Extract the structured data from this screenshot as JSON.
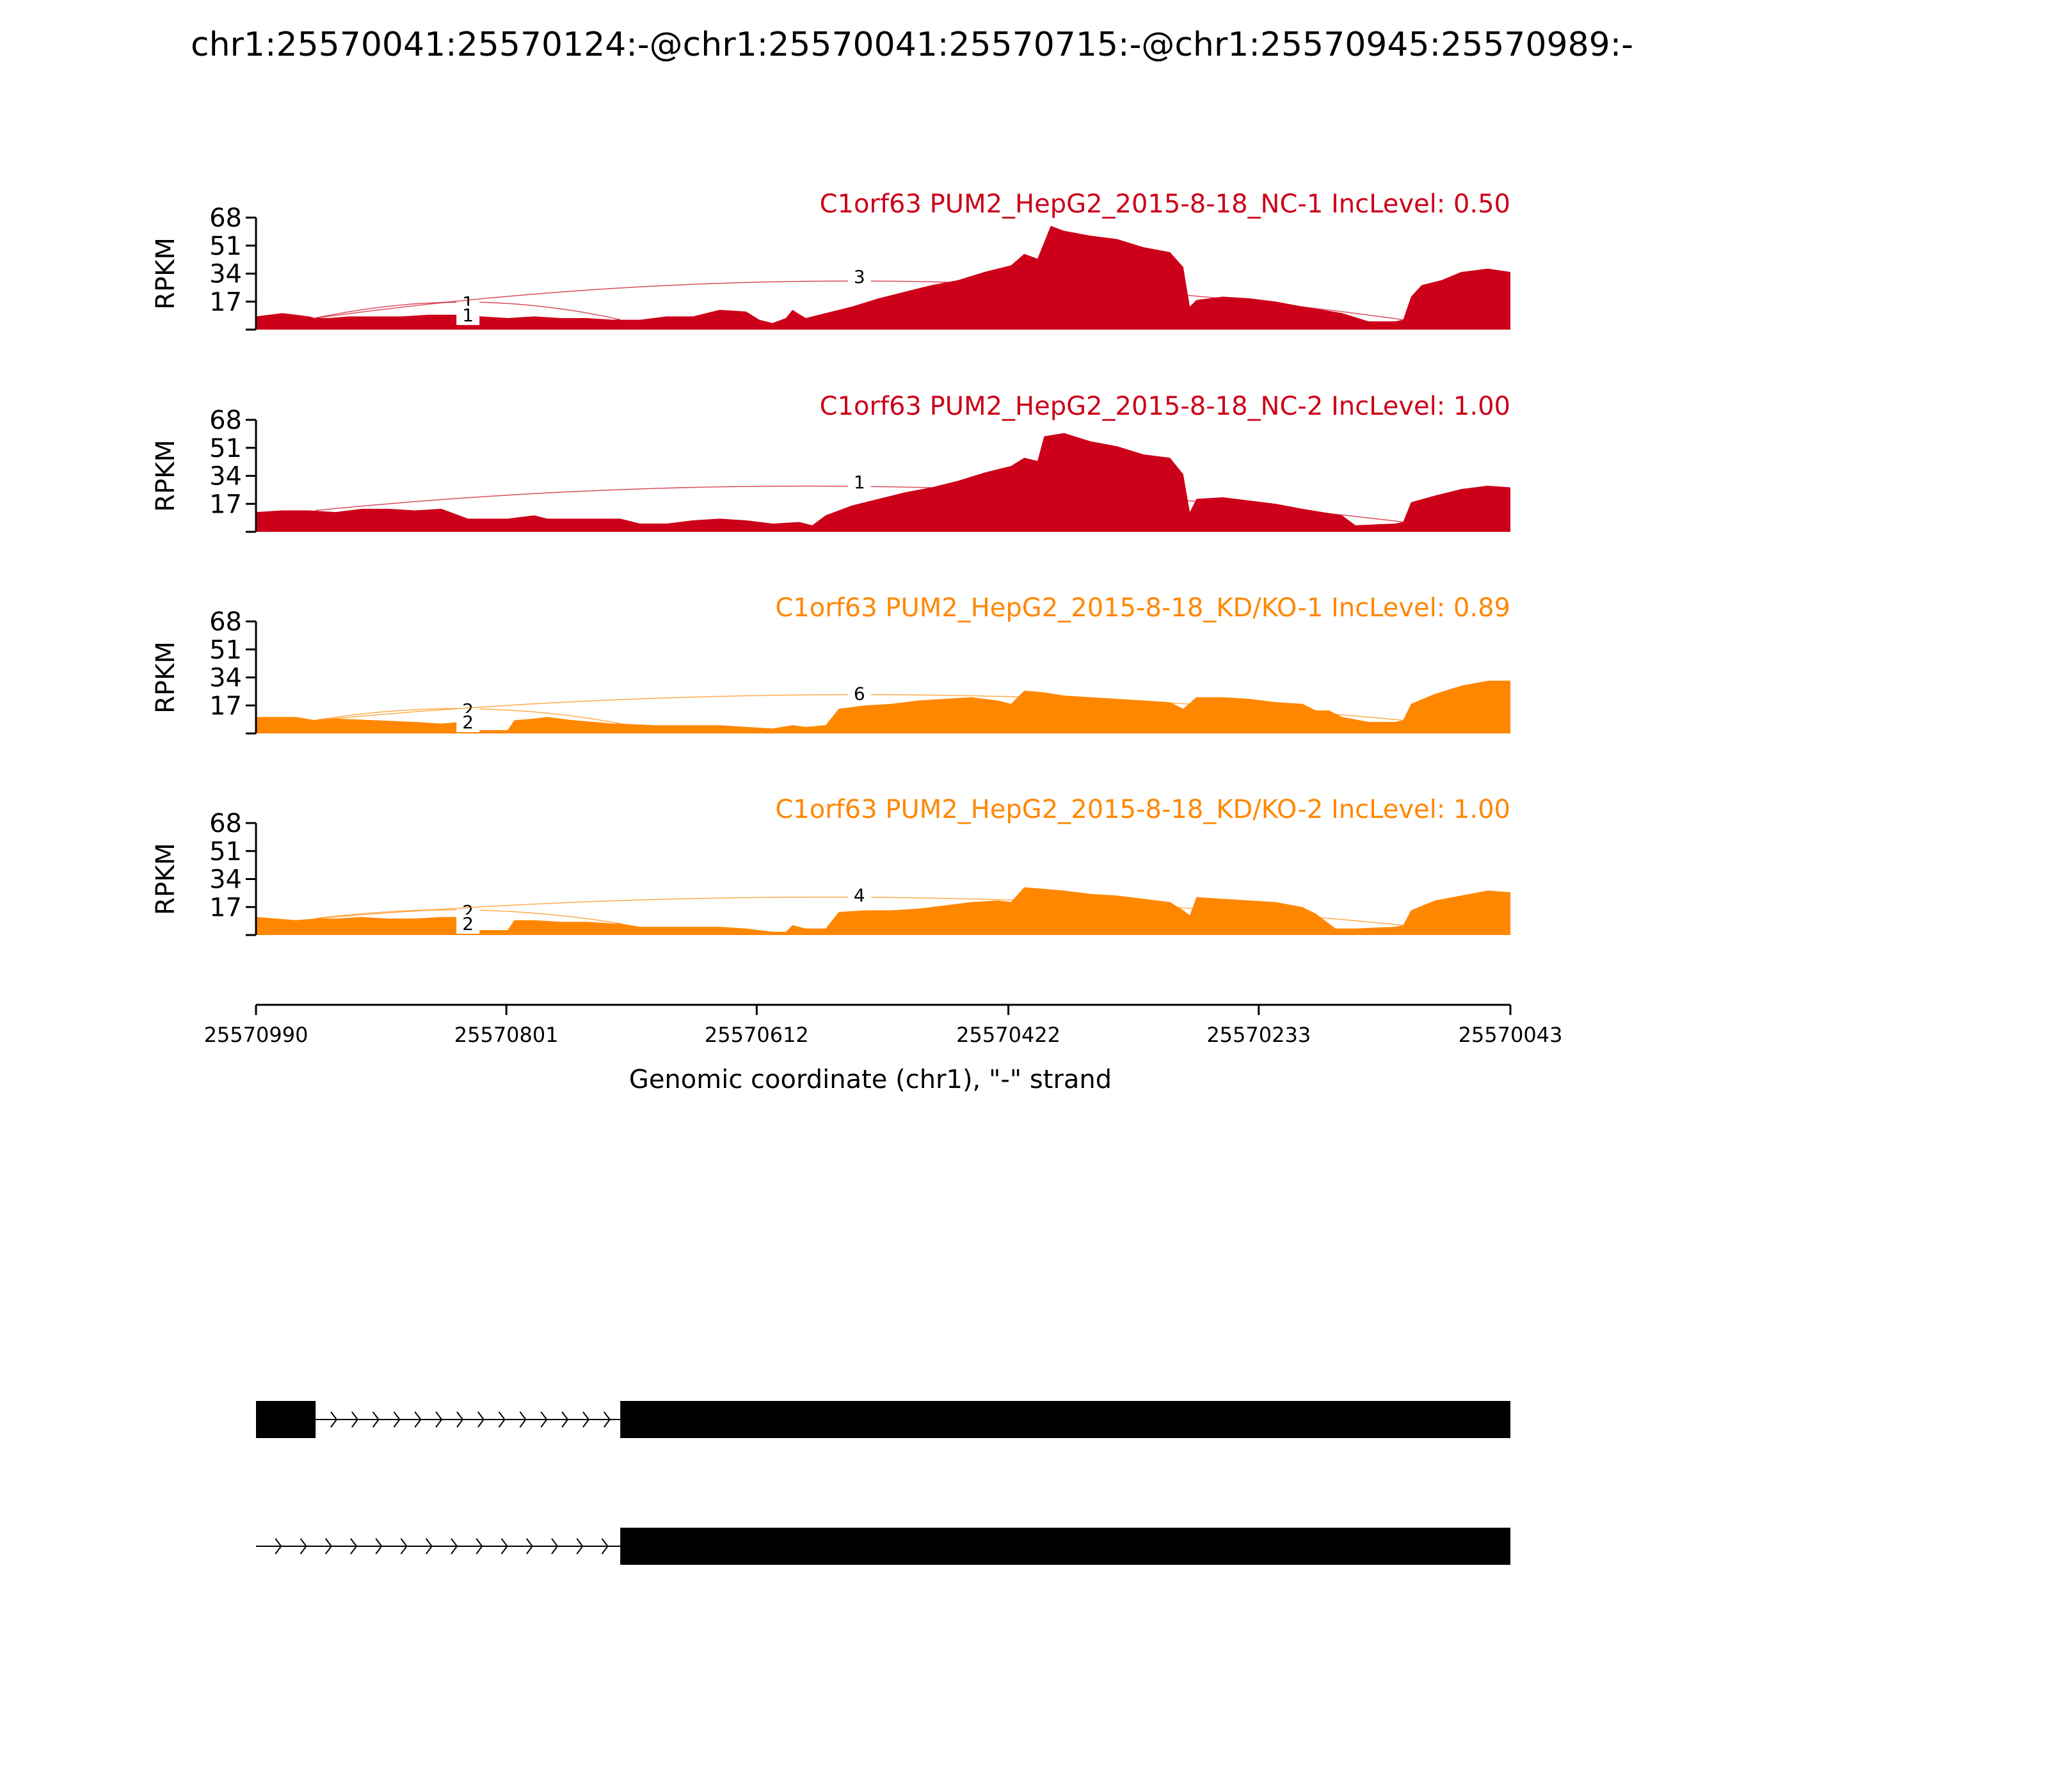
{
  "title": "chr1:25570041:25570124:-@chr1:25570041:25570715:-@chr1:25570945:25570989:-",
  "colors": {
    "nc": "#cc0018",
    "kd": "#ff8700",
    "axis": "#000000",
    "gene": "#000000"
  },
  "chart_data": {
    "type": "area",
    "xlabel": "Genomic coordinate (chr1), \"-\" strand",
    "x_ticks": [
      "25570990",
      "25570801",
      "25570612",
      "25570422",
      "25570233",
      "25570043"
    ],
    "xlim": [
      25570990,
      25570043
    ],
    "ylabel": "RPKM",
    "y_ticks": [
      "17",
      "34",
      "51",
      "68"
    ],
    "ylim": [
      0,
      68
    ],
    "tracks": [
      {
        "label": "C1orf63 PUM2_HepG2_2015-8-18_NC-1 IncLevel: 0.50",
        "color_key": "nc",
        "coverage": [
          [
            25570990,
            8
          ],
          [
            25570970,
            10
          ],
          [
            25570950,
            8
          ],
          [
            25570945,
            7
          ],
          [
            25570935,
            7
          ],
          [
            25570920,
            8
          ],
          [
            25570900,
            8
          ],
          [
            25570880,
            8
          ],
          [
            25570860,
            9
          ],
          [
            25570840,
            9
          ],
          [
            25570820,
            8
          ],
          [
            25570800,
            7
          ],
          [
            25570780,
            8
          ],
          [
            25570760,
            7
          ],
          [
            25570740,
            7
          ],
          [
            25570720,
            6
          ],
          [
            25570715,
            6
          ],
          [
            25570700,
            6
          ],
          [
            25570680,
            8
          ],
          [
            25570660,
            8
          ],
          [
            25570640,
            12
          ],
          [
            25570620,
            11
          ],
          [
            25570610,
            6
          ],
          [
            25570600,
            4
          ],
          [
            25570590,
            7
          ],
          [
            25570585,
            12
          ],
          [
            25570575,
            7
          ],
          [
            25570560,
            10
          ],
          [
            25570540,
            14
          ],
          [
            25570520,
            19
          ],
          [
            25570500,
            23
          ],
          [
            25570480,
            27
          ],
          [
            25570460,
            30
          ],
          [
            25570440,
            35
          ],
          [
            25570420,
            39
          ],
          [
            25570410,
            46
          ],
          [
            25570400,
            43
          ],
          [
            25570390,
            63
          ],
          [
            25570380,
            60
          ],
          [
            25570360,
            57
          ],
          [
            25570340,
            55
          ],
          [
            25570320,
            50
          ],
          [
            25570300,
            47
          ],
          [
            25570290,
            38
          ],
          [
            25570285,
            14
          ],
          [
            25570280,
            18
          ],
          [
            25570260,
            20
          ],
          [
            25570240,
            19
          ],
          [
            25570220,
            17
          ],
          [
            25570200,
            14
          ],
          [
            25570170,
            10
          ],
          [
            25570150,
            5
          ],
          [
            25570130,
            5
          ],
          [
            25570124,
            6
          ],
          [
            25570118,
            20
          ],
          [
            25570110,
            27
          ],
          [
            25570095,
            30
          ],
          [
            25570080,
            35
          ],
          [
            25570060,
            37
          ],
          [
            25570043,
            35
          ]
        ],
        "junctions": [
          {
            "label": "1",
            "from": 25570945,
            "to": 25570715,
            "side": "above",
            "height": 14
          },
          {
            "label": "1",
            "from": 25570945,
            "to": 25570715,
            "side": "below",
            "height": 9
          },
          {
            "label": "3",
            "from": 25570945,
            "to": 25570124,
            "side": "above",
            "height": 30
          }
        ]
      },
      {
        "label": "C1orf63 PUM2_HepG2_2015-8-18_NC-2 IncLevel: 1.00",
        "color_key": "nc",
        "coverage": [
          [
            25570990,
            12
          ],
          [
            25570970,
            13
          ],
          [
            25570950,
            13
          ],
          [
            25570930,
            12
          ],
          [
            25570910,
            14
          ],
          [
            25570890,
            14
          ],
          [
            25570870,
            13
          ],
          [
            25570850,
            14
          ],
          [
            25570830,
            8
          ],
          [
            25570800,
            8
          ],
          [
            25570780,
            10
          ],
          [
            25570770,
            8
          ],
          [
            25570750,
            8
          ],
          [
            25570730,
            8
          ],
          [
            25570715,
            8
          ],
          [
            25570700,
            5
          ],
          [
            25570680,
            5
          ],
          [
            25570660,
            7
          ],
          [
            25570640,
            8
          ],
          [
            25570620,
            7
          ],
          [
            25570600,
            5
          ],
          [
            25570580,
            6
          ],
          [
            25570570,
            4
          ],
          [
            25570560,
            10
          ],
          [
            25570540,
            16
          ],
          [
            25570520,
            20
          ],
          [
            25570500,
            24
          ],
          [
            25570480,
            27
          ],
          [
            25570460,
            31
          ],
          [
            25570440,
            36
          ],
          [
            25570420,
            40
          ],
          [
            25570410,
            45
          ],
          [
            25570400,
            43
          ],
          [
            25570395,
            58
          ],
          [
            25570380,
            60
          ],
          [
            25570360,
            55
          ],
          [
            25570340,
            52
          ],
          [
            25570320,
            47
          ],
          [
            25570300,
            45
          ],
          [
            25570290,
            35
          ],
          [
            25570285,
            12
          ],
          [
            25570280,
            20
          ],
          [
            25570260,
            21
          ],
          [
            25570240,
            19
          ],
          [
            25570220,
            17
          ],
          [
            25570200,
            14
          ],
          [
            25570170,
            10
          ],
          [
            25570160,
            4
          ],
          [
            25570130,
            5
          ],
          [
            25570124,
            6
          ],
          [
            25570118,
            18
          ],
          [
            25570100,
            22
          ],
          [
            25570080,
            26
          ],
          [
            25570060,
            28
          ],
          [
            25570043,
            27
          ]
        ],
        "junctions": [
          {
            "label": "1",
            "from": 25570945,
            "to": 25570124,
            "side": "above",
            "height": 28
          }
        ]
      },
      {
        "label": "C1orf63 PUM2_HepG2_2015-8-18_KD/KO-1 IncLevel: 0.89",
        "color_key": "kd",
        "coverage": [
          [
            25570990,
            10
          ],
          [
            25570960,
            10
          ],
          [
            25570945,
            8
          ],
          [
            25570930,
            9
          ],
          [
            25570900,
            8
          ],
          [
            25570870,
            7
          ],
          [
            25570850,
            6
          ],
          [
            25570835,
            7
          ],
          [
            25570830,
            2
          ],
          [
            25570810,
            2
          ],
          [
            25570800,
            2
          ],
          [
            25570795,
            8
          ],
          [
            25570780,
            9
          ],
          [
            25570770,
            10
          ],
          [
            25570750,
            8
          ],
          [
            25570720,
            6
          ],
          [
            25570715,
            6
          ],
          [
            25570690,
            5
          ],
          [
            25570660,
            5
          ],
          [
            25570640,
            5
          ],
          [
            25570620,
            4
          ],
          [
            25570600,
            3
          ],
          [
            25570585,
            5
          ],
          [
            25570575,
            4
          ],
          [
            25570560,
            5
          ],
          [
            25570550,
            15
          ],
          [
            25570530,
            17
          ],
          [
            25570510,
            18
          ],
          [
            25570490,
            20
          ],
          [
            25570470,
            21
          ],
          [
            25570450,
            22
          ],
          [
            25570430,
            20
          ],
          [
            25570420,
            18
          ],
          [
            25570410,
            26
          ],
          [
            25570395,
            25
          ],
          [
            25570380,
            23
          ],
          [
            25570360,
            22
          ],
          [
            25570340,
            21
          ],
          [
            25570320,
            20
          ],
          [
            25570300,
            19
          ],
          [
            25570290,
            15
          ],
          [
            25570280,
            22
          ],
          [
            25570260,
            22
          ],
          [
            25570240,
            21
          ],
          [
            25570220,
            19
          ],
          [
            25570200,
            18
          ],
          [
            25570190,
            14
          ],
          [
            25570180,
            14
          ],
          [
            25570170,
            10
          ],
          [
            25570150,
            7
          ],
          [
            25570130,
            7
          ],
          [
            25570124,
            8
          ],
          [
            25570118,
            18
          ],
          [
            25570100,
            24
          ],
          [
            25570080,
            29
          ],
          [
            25570060,
            32
          ],
          [
            25570043,
            32
          ]
        ],
        "junctions": [
          {
            "label": "2",
            "from": 25570945,
            "to": 25570715,
            "side": "above",
            "height": 12
          },
          {
            "label": "2",
            "from": 25570945,
            "to": 25570715,
            "side": "below",
            "height": 7
          },
          {
            "label": "6",
            "from": 25570945,
            "to": 25570124,
            "side": "above",
            "height": 22
          }
        ]
      },
      {
        "label": "C1orf63 PUM2_HepG2_2015-8-18_KD/KO-2 IncLevel: 1.00",
        "color_key": "kd",
        "coverage": [
          [
            25570990,
            11
          ],
          [
            25570960,
            9
          ],
          [
            25570945,
            10
          ],
          [
            25570930,
            10
          ],
          [
            25570910,
            11
          ],
          [
            25570890,
            10
          ],
          [
            25570870,
            10
          ],
          [
            25570850,
            11
          ],
          [
            25570835,
            11
          ],
          [
            25570830,
            3
          ],
          [
            25570815,
            3
          ],
          [
            25570800,
            3
          ],
          [
            25570795,
            9
          ],
          [
            25570780,
            9
          ],
          [
            25570760,
            8
          ],
          [
            25570740,
            8
          ],
          [
            25570720,
            7
          ],
          [
            25570715,
            7
          ],
          [
            25570700,
            5
          ],
          [
            25570680,
            5
          ],
          [
            25570660,
            5
          ],
          [
            25570640,
            5
          ],
          [
            25570620,
            4
          ],
          [
            25570600,
            2
          ],
          [
            25570590,
            2
          ],
          [
            25570585,
            6
          ],
          [
            25570575,
            4
          ],
          [
            25570560,
            4
          ],
          [
            25570550,
            14
          ],
          [
            25570530,
            15
          ],
          [
            25570510,
            15
          ],
          [
            25570490,
            16
          ],
          [
            25570470,
            18
          ],
          [
            25570450,
            20
          ],
          [
            25570430,
            21
          ],
          [
            25570420,
            20
          ],
          [
            25570410,
            29
          ],
          [
            25570395,
            28
          ],
          [
            25570380,
            27
          ],
          [
            25570360,
            25
          ],
          [
            25570340,
            24
          ],
          [
            25570320,
            22
          ],
          [
            25570300,
            20
          ],
          [
            25570290,
            15
          ],
          [
            25570285,
            12
          ],
          [
            25570280,
            23
          ],
          [
            25570260,
            22
          ],
          [
            25570240,
            21
          ],
          [
            25570220,
            20
          ],
          [
            25570200,
            17
          ],
          [
            25570190,
            13
          ],
          [
            25570175,
            4
          ],
          [
            25570160,
            4
          ],
          [
            25570130,
            5
          ],
          [
            25570124,
            6
          ],
          [
            25570118,
            15
          ],
          [
            25570100,
            21
          ],
          [
            25570080,
            24
          ],
          [
            25570060,
            27
          ],
          [
            25570043,
            26
          ]
        ],
        "junctions": [
          {
            "label": "2",
            "from": 25570945,
            "to": 25570715,
            "side": "above",
            "height": 12
          },
          {
            "label": "2",
            "from": 25570945,
            "to": 25570715,
            "side": "below",
            "height": 7
          },
          {
            "label": "4",
            "from": 25570945,
            "to": 25570124,
            "side": "above",
            "height": 22
          }
        ]
      }
    ],
    "isoforms": [
      {
        "exons": [
          [
            25570990,
            25570945
          ],
          [
            25570715,
            25570043
          ]
        ],
        "intron": [
          25570945,
          25570715
        ]
      },
      {
        "exons": [
          [
            25570715,
            25570043
          ]
        ],
        "intron": [
          25570990,
          25570715
        ]
      }
    ]
  }
}
